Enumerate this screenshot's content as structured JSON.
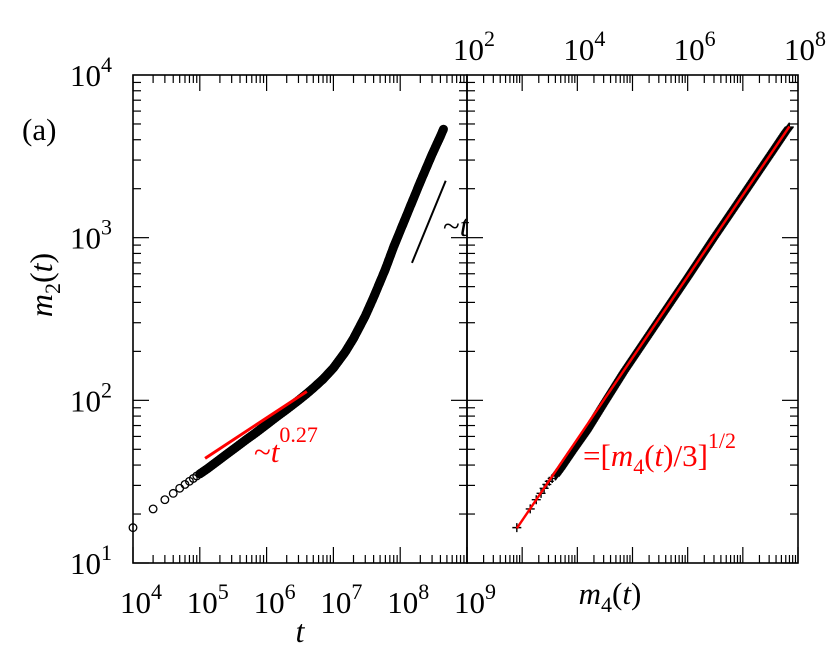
{
  "panel_label": "(a)",
  "chart_data": [
    {
      "type": "scatter",
      "panel": "left",
      "xlabel": "t",
      "ylabel": "m2(t)",
      "xscale": "log",
      "yscale": "log",
      "xlim": [
        10000,
        1000000000
      ],
      "ylim": [
        10,
        10000
      ],
      "x_tick_labels": [
        {
          "base": "10",
          "exp": "4"
        },
        {
          "base": "10",
          "exp": "5"
        },
        {
          "base": "10",
          "exp": "6"
        },
        {
          "base": "10",
          "exp": "7"
        },
        {
          "base": "10",
          "exp": "8"
        },
        {
          "base": "10",
          "exp": "9"
        }
      ],
      "y_tick_labels": [
        {
          "base": "10",
          "exp": "1"
        },
        {
          "base": "10",
          "exp": "2"
        },
        {
          "base": "10",
          "exp": "3"
        },
        {
          "base": "10",
          "exp": "4"
        }
      ],
      "marker": "circle",
      "marker_color": "#000000",
      "series": [
        {
          "points": [
            [
              10000,
              16.5
            ],
            [
              20000,
              21.5
            ],
            [
              30000,
              24.5
            ],
            [
              40000,
              26.8
            ],
            [
              50000,
              28.8
            ],
            [
              60000,
              30.4
            ],
            [
              70000,
              31.8
            ],
            [
              80000,
              33.1
            ],
            [
              90000,
              34.3
            ],
            [
              100000,
              35.3
            ],
            [
              130000,
              38
            ],
            [
              180000,
              42
            ],
            [
              250000,
              46.5
            ],
            [
              350000,
              51.5
            ],
            [
              500000,
              57.5
            ],
            [
              700000,
              63.5
            ],
            [
              1000000,
              71
            ],
            [
              1400000,
              79
            ],
            [
              2000000,
              88
            ],
            [
              3000000,
              100
            ],
            [
              4000000,
              110
            ],
            [
              5000000,
              119
            ],
            [
              7000000,
              135
            ],
            [
              10000000,
              158
            ],
            [
              15000000,
              198
            ],
            [
              20000000,
              240
            ],
            [
              30000000,
              330
            ],
            [
              40000000,
              430
            ],
            [
              60000000,
              640
            ],
            [
              80000000,
              880
            ],
            [
              100000000,
              1100
            ],
            [
              150000000,
              1650
            ],
            [
              200000000,
              2200
            ],
            [
              300000000,
              3250
            ],
            [
              400000000,
              4200
            ],
            [
              450000000,
              4700
            ]
          ]
        }
      ],
      "fit_lines": [
        {
          "label_base": "~t",
          "label_exp": "0.27",
          "color": "#ff0000",
          "exponent": 0.27,
          "x_range": [
            120000,
            4000000
          ],
          "y_start": 44
        },
        {
          "label": "~t",
          "color": "#000000",
          "exponent": 1,
          "x_range": [
            150000000,
            480000000
          ],
          "y_start": 700
        }
      ]
    },
    {
      "type": "scatter",
      "panel": "right",
      "xlabel": "m4(t)",
      "xscale": "log",
      "yscale": "log",
      "xlim": [
        100,
        100000000
      ],
      "ylim": [
        10,
        10000
      ],
      "x_tick_labels_top": [
        {
          "base": "10",
          "exp": "2"
        },
        {
          "base": "10",
          "exp": "4"
        },
        {
          "base": "10",
          "exp": "6"
        },
        {
          "base": "10",
          "exp": "8"
        }
      ],
      "marker": "plus",
      "marker_color": "#000000",
      "series": [
        {
          "points": [
            [
              800,
              16.5
            ],
            [
              1400,
              21.5
            ],
            [
              1800,
              24.5
            ],
            [
              2200,
              26.8
            ],
            [
              2500,
              28.8
            ],
            [
              2800,
              30.4
            ],
            [
              3100,
              31.8
            ],
            [
              3500,
              33.1
            ],
            [
              4000,
              34.3
            ],
            [
              5000,
              38
            ],
            [
              8000,
              48
            ],
            [
              15000,
              65
            ],
            [
              30000,
              95
            ],
            [
              70000,
              150
            ],
            [
              150000,
              220
            ],
            [
              400000,
              360
            ],
            [
              1000000,
              570
            ],
            [
              3000000,
              1000
            ],
            [
              8000000,
              1630
            ],
            [
              20000000,
              2580
            ],
            [
              40000000,
              3650
            ],
            [
              60000000,
              4480
            ],
            [
              70000000,
              4800
            ]
          ]
        }
      ],
      "fit_lines": [
        {
          "label": "=[m4(t)/3]",
          "label_exp": "1/2",
          "color": "#ff0000",
          "exponent": 0.5,
          "prefactor": 0.57735,
          "x_range": [
            800,
            70000000
          ]
        }
      ]
    }
  ]
}
